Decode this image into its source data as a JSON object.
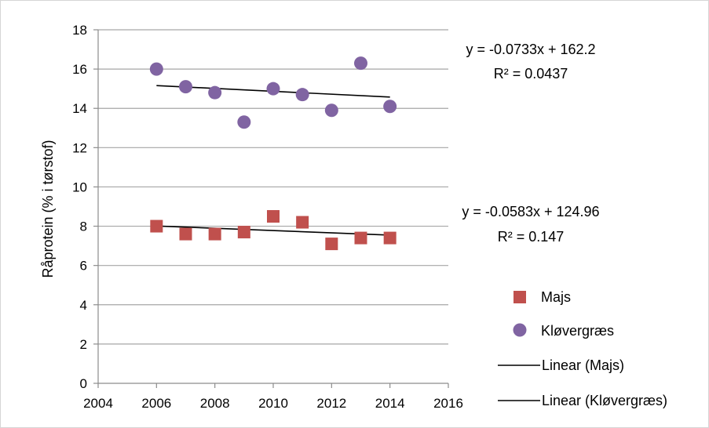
{
  "chart_data": {
    "type": "scatter",
    "ylabel": "Råprotein (% i tørstof)",
    "xlim": [
      2004,
      2016
    ],
    "ylim": [
      0,
      18
    ],
    "x_ticks": [
      2004,
      2006,
      2008,
      2010,
      2012,
      2014,
      2016
    ],
    "y_ticks": [
      0,
      2,
      4,
      6,
      8,
      10,
      12,
      14,
      16,
      18
    ],
    "grid": "horizontal",
    "legend_position": "right",
    "series": [
      {
        "name": "Majs",
        "marker": "square",
        "color": "#c0504d",
        "points": [
          {
            "x": 2006,
            "y": 8.0
          },
          {
            "x": 2007,
            "y": 7.6
          },
          {
            "x": 2008,
            "y": 7.6
          },
          {
            "x": 2009,
            "y": 7.7
          },
          {
            "x": 2010,
            "y": 8.5
          },
          {
            "x": 2011,
            "y": 8.2
          },
          {
            "x": 2012,
            "y": 7.1
          },
          {
            "x": 2013,
            "y": 7.4
          },
          {
            "x": 2014,
            "y": 7.4
          }
        ]
      },
      {
        "name": "Kløvergræs",
        "marker": "circle",
        "color": "#8064a2",
        "points": [
          {
            "x": 2006,
            "y": 16.0
          },
          {
            "x": 2007,
            "y": 15.1
          },
          {
            "x": 2008,
            "y": 14.8
          },
          {
            "x": 2009,
            "y": 13.3
          },
          {
            "x": 2010,
            "y": 15.0
          },
          {
            "x": 2011,
            "y": 14.7
          },
          {
            "x": 2012,
            "y": 13.9
          },
          {
            "x": 2013,
            "y": 16.3
          },
          {
            "x": 2014,
            "y": 14.1
          }
        ]
      }
    ],
    "trendlines": [
      {
        "name": "Linear (Majs)",
        "slope": -0.0583,
        "intercept": 124.96,
        "x_range": [
          2006,
          2014
        ],
        "equation": "y = -0.0583x + 124.96",
        "r2_label": "R² = 0.147",
        "color": "#000000"
      },
      {
        "name": "Linear (Kløvergræs)",
        "slope": -0.0733,
        "intercept": 162.2,
        "x_range": [
          2006,
          2014
        ],
        "equation": "y = -0.0733x + 162.2",
        "r2_label": "R² = 0.0437",
        "color": "#000000"
      }
    ]
  }
}
